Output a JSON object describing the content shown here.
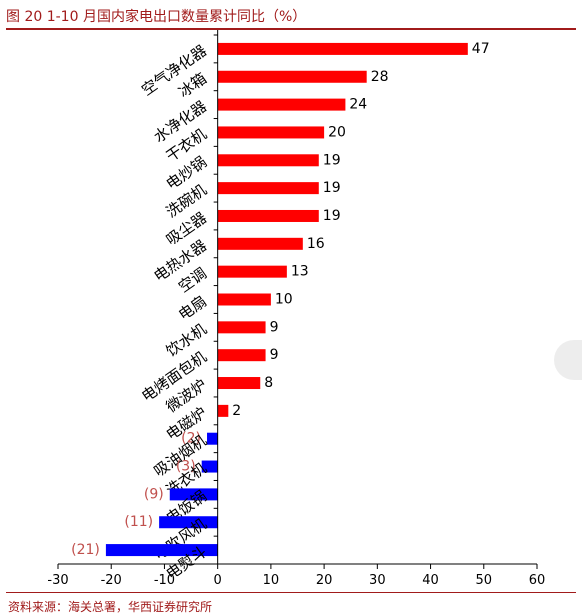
{
  "header": {
    "title": "图 20   1-10 月国内家电出口数量累计同比（%）"
  },
  "footer": {
    "note": "资料来源：海关总署，华西证券研究所"
  },
  "chart_data": {
    "type": "bar",
    "orientation": "horizontal",
    "title": "",
    "xlabel": "",
    "ylabel": "",
    "xlim": [
      -30,
      60
    ],
    "xticks": [
      -30,
      -20,
      -10,
      0,
      10,
      20,
      30,
      40,
      50,
      60
    ],
    "grid": false,
    "legend": "none",
    "colors": {
      "positive": "#ff0000",
      "negative": "#0000ff",
      "negative_label": "#c0504d",
      "label": "#000000"
    },
    "categories": [
      "空气净化器",
      "冰箱",
      "水净化器",
      "干衣机",
      "电炒锅",
      "洗碗机",
      "吸尘器",
      "电热水器",
      "空调",
      "电扇",
      "饮水机",
      "电烤面包机",
      "微波炉",
      "电磁炉",
      "吸油烟机",
      "洗衣机",
      "电饭锅",
      "电吹风机",
      "电熨斗"
    ],
    "values": [
      47,
      28,
      24,
      20,
      19,
      19,
      19,
      16,
      13,
      10,
      9,
      9,
      8,
      2,
      -2,
      -3,
      -9,
      -11,
      -21
    ],
    "data_labels": [
      "47",
      "28",
      "24",
      "20",
      "19",
      "19",
      "19",
      "16",
      "13",
      "10",
      "9",
      "9",
      "8",
      "2",
      "(2)",
      "(3)",
      "(9)",
      "(11)",
      "(21)"
    ]
  }
}
